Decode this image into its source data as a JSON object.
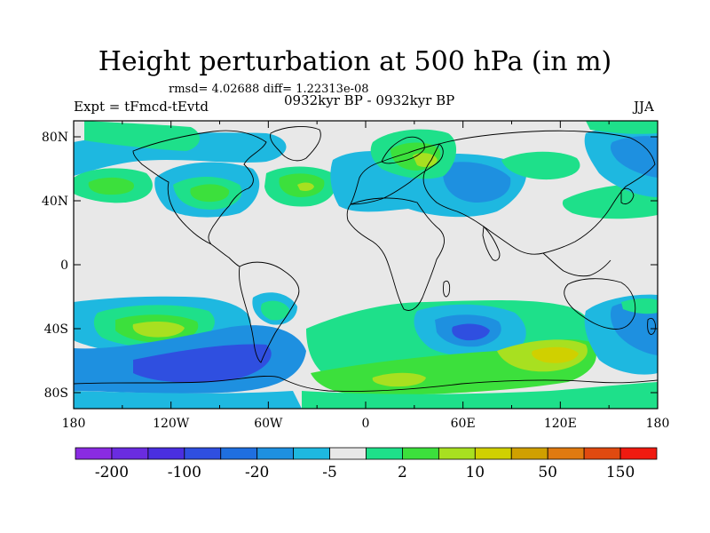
{
  "title": "Height perturbation at 500 hPa (in m)",
  "stats_line": "rmsd= 4.02688 diff= 1.22313e-08",
  "left_label": "Expt = tFmcd-tEvtd",
  "center_label": "0932kyr BP - 0932kyr BP",
  "right_label": "JJA",
  "lat_ticks": [
    {
      "label": "80N",
      "value": 80
    },
    {
      "label": "40N",
      "value": 40
    },
    {
      "label": "0",
      "value": 0
    },
    {
      "label": "40S",
      "value": -40
    },
    {
      "label": "80S",
      "value": -80
    }
  ],
  "lon_ticks": [
    {
      "label": "180",
      "value": -180
    },
    {
      "label": "120W",
      "value": -120
    },
    {
      "label": "60W",
      "value": -60
    },
    {
      "label": "0",
      "value": 0
    },
    {
      "label": "60E",
      "value": 60
    },
    {
      "label": "120E",
      "value": 120
    },
    {
      "label": "180",
      "value": 180
    }
  ],
  "colorbar": {
    "colors": [
      "#8a2be2",
      "#6a2ce0",
      "#4a2fe0",
      "#2f4fe0",
      "#1f6fe0",
      "#1e90e0",
      "#1eb8e0",
      "#e8e8e8",
      "#1ee08a",
      "#3ce03c",
      "#a8e020",
      "#d0d000",
      "#d0a000",
      "#e07a10",
      "#e04a10",
      "#f01a10"
    ],
    "labels": [
      {
        "text": "-200",
        "edge": 1
      },
      {
        "text": "-100",
        "edge": 3
      },
      {
        "text": "-20",
        "edge": 5
      },
      {
        "text": "-5",
        "edge": 7
      },
      {
        "text": "2",
        "edge": 9
      },
      {
        "text": "10",
        "edge": 11
      },
      {
        "text": "50",
        "edge": 13
      },
      {
        "text": "150",
        "edge": 15
      }
    ]
  },
  "field_colors": {
    "neg_strong": "#2f4fe0",
    "neg_mid": "#1e90e0",
    "neg_weak": "#1eb8e0",
    "neutral": "#e8e8e8",
    "pos_weak": "#1ee08a",
    "pos_mid": "#3ce03c",
    "pos_strong": "#a8e020",
    "pos_peak": "#d0d000"
  }
}
